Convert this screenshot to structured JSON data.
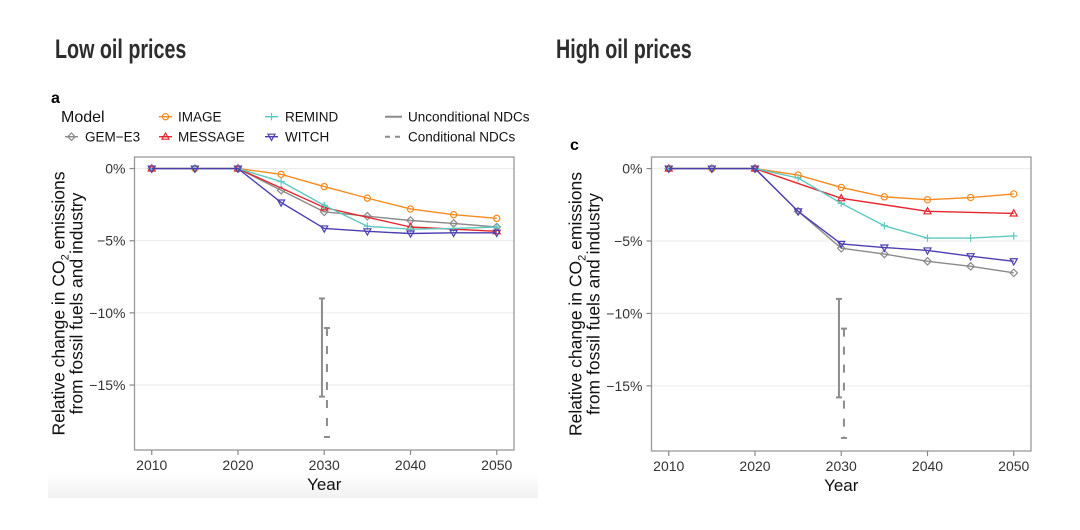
{
  "titles": {
    "left": "Low oil prices",
    "right": "High oil prices"
  },
  "legend": {
    "title": "Model",
    "models": [
      {
        "name": "GEM-E3",
        "label": "GEM−E3",
        "color": "#8a8a8a",
        "marker": "diamond"
      },
      {
        "name": "IMAGE",
        "label": "IMAGE",
        "color": "#f68b1f",
        "marker": "circle"
      },
      {
        "name": "MESSAGE",
        "label": "MESSAGE",
        "color": "#e5262d",
        "marker": "triangle-up"
      },
      {
        "name": "REMIND",
        "label": "REMIND",
        "color": "#5ec9c1",
        "marker": "plus"
      },
      {
        "name": "WITCH",
        "label": "WITCH",
        "color": "#4b3fb0",
        "marker": "triangle-down"
      }
    ],
    "ndc": [
      {
        "label": "Unconditional NDCs",
        "style": "solid",
        "color": "#8c8c8c"
      },
      {
        "label": "Conditional NDCs",
        "style": "dashed",
        "color": "#8c8c8c"
      }
    ]
  },
  "chart_data": [
    {
      "type": "line",
      "panel_label": "a",
      "title": "Low oil prices",
      "xlabel": "Year",
      "ylabel": "Relative change in CO2 emissions from fossil fuels and industry",
      "ylabel_parts": {
        "line1_pre": "Relative change in CO",
        "line1_sub": "2",
        "line1_post": " emissions",
        "line2": "from fossil fuels and industry"
      },
      "xlim": [
        2008,
        2052
      ],
      "ylim": [
        -19.5,
        0.8
      ],
      "x_ticks": [
        2010,
        2020,
        2030,
        2040,
        2050
      ],
      "x_tick_labels": [
        "2010",
        "2020",
        "2030",
        "2040",
        "2050"
      ],
      "y_ticks": [
        0,
        -5,
        -10,
        -15
      ],
      "y_tick_labels": [
        "0%",
        "−5%",
        "−10%",
        "−15%"
      ],
      "grid": "horizontal major gridlines",
      "legend_position": "top",
      "series": [
        {
          "name": "GEM-E3",
          "x": [
            2010,
            2015,
            2020,
            2025,
            2030,
            2035,
            2040,
            2045,
            2050
          ],
          "y": [
            0,
            0,
            0,
            -1.5,
            -3.0,
            -3.3,
            -3.6,
            -3.8,
            -4.05
          ]
        },
        {
          "name": "IMAGE",
          "x": [
            2010,
            2015,
            2020,
            2025,
            2030,
            2035,
            2040,
            2045,
            2050
          ],
          "y": [
            0,
            0,
            0,
            -0.4,
            -1.25,
            -2.05,
            -2.8,
            -3.2,
            -3.45
          ]
        },
        {
          "name": "MESSAGE",
          "x": [
            2010,
            2020,
            2030,
            2040,
            2050
          ],
          "y": [
            0,
            0,
            -2.7,
            -4.05,
            -4.35
          ]
        },
        {
          "name": "REMIND",
          "x": [
            2010,
            2015,
            2020,
            2025,
            2030,
            2035,
            2040,
            2045,
            2050
          ],
          "y": [
            0,
            0,
            0,
            -0.9,
            -2.55,
            -4.0,
            -4.2,
            -4.15,
            -4.05
          ]
        },
        {
          "name": "WITCH",
          "x": [
            2010,
            2015,
            2020,
            2025,
            2030,
            2035,
            2040,
            2045,
            2050
          ],
          "y": [
            0,
            0,
            0,
            -2.35,
            -4.15,
            -4.35,
            -4.5,
            -4.45,
            -4.45
          ]
        }
      ],
      "ndc_ranges": [
        {
          "name": "Unconditional NDCs",
          "x": 2030,
          "ymin": -15.8,
          "ymax": -9.0,
          "style": "solid"
        },
        {
          "name": "Conditional NDCs",
          "x": 2030,
          "ymin": -18.6,
          "ymax": -11.05,
          "style": "dashed"
        }
      ]
    },
    {
      "type": "line",
      "panel_label": "c",
      "title": "High oil prices",
      "xlabel": "Year",
      "ylabel": "Relative change in CO2 emissions from fossil fuels and industry",
      "ylabel_parts": {
        "line1_pre": "Relative change in CO",
        "line1_sub": "2",
        "line1_post": " emissions",
        "line2": "from fossil fuels and industry"
      },
      "xlim": [
        2008,
        2052
      ],
      "ylim": [
        -19.5,
        0.8
      ],
      "x_ticks": [
        2010,
        2020,
        2030,
        2040,
        2050
      ],
      "x_tick_labels": [
        "2010",
        "2020",
        "2030",
        "2040",
        "2050"
      ],
      "y_ticks": [
        0,
        -5,
        -10,
        -15
      ],
      "y_tick_labels": [
        "0%",
        "−5%",
        "−10%",
        "−15%"
      ],
      "grid": "horizontal major gridlines",
      "legend_position": "shared (above panel a)",
      "series": [
        {
          "name": "GEM-E3",
          "x": [
            2010,
            2015,
            2020,
            2025,
            2030,
            2035,
            2040,
            2045,
            2050
          ],
          "y": [
            0,
            0,
            0,
            -2.95,
            -5.5,
            -5.9,
            -6.4,
            -6.75,
            -7.2
          ]
        },
        {
          "name": "IMAGE",
          "x": [
            2010,
            2015,
            2020,
            2025,
            2030,
            2035,
            2040,
            2045,
            2050
          ],
          "y": [
            0,
            0,
            0,
            -0.45,
            -1.3,
            -1.95,
            -2.15,
            -2.0,
            -1.75
          ]
        },
        {
          "name": "MESSAGE",
          "x": [
            2010,
            2020,
            2030,
            2040,
            2050
          ],
          "y": [
            0,
            0,
            -2.05,
            -2.95,
            -3.1
          ]
        },
        {
          "name": "REMIND",
          "x": [
            2010,
            2015,
            2020,
            2025,
            2030,
            2035,
            2040,
            2045,
            2050
          ],
          "y": [
            0,
            0,
            0,
            -0.65,
            -2.4,
            -3.95,
            -4.8,
            -4.8,
            -4.65
          ]
        },
        {
          "name": "WITCH",
          "x": [
            2010,
            2015,
            2020,
            2025,
            2030,
            2035,
            2040,
            2045,
            2050
          ],
          "y": [
            0,
            0,
            0,
            -2.95,
            -5.2,
            -5.45,
            -5.65,
            -6.05,
            -6.4
          ]
        }
      ],
      "ndc_ranges": [
        {
          "name": "Unconditional NDCs",
          "x": 2030,
          "ymin": -15.8,
          "ymax": -9.0,
          "style": "solid"
        },
        {
          "name": "Conditional NDCs",
          "x": 2030,
          "ymin": -18.6,
          "ymax": -11.05,
          "style": "dashed"
        }
      ]
    }
  ]
}
